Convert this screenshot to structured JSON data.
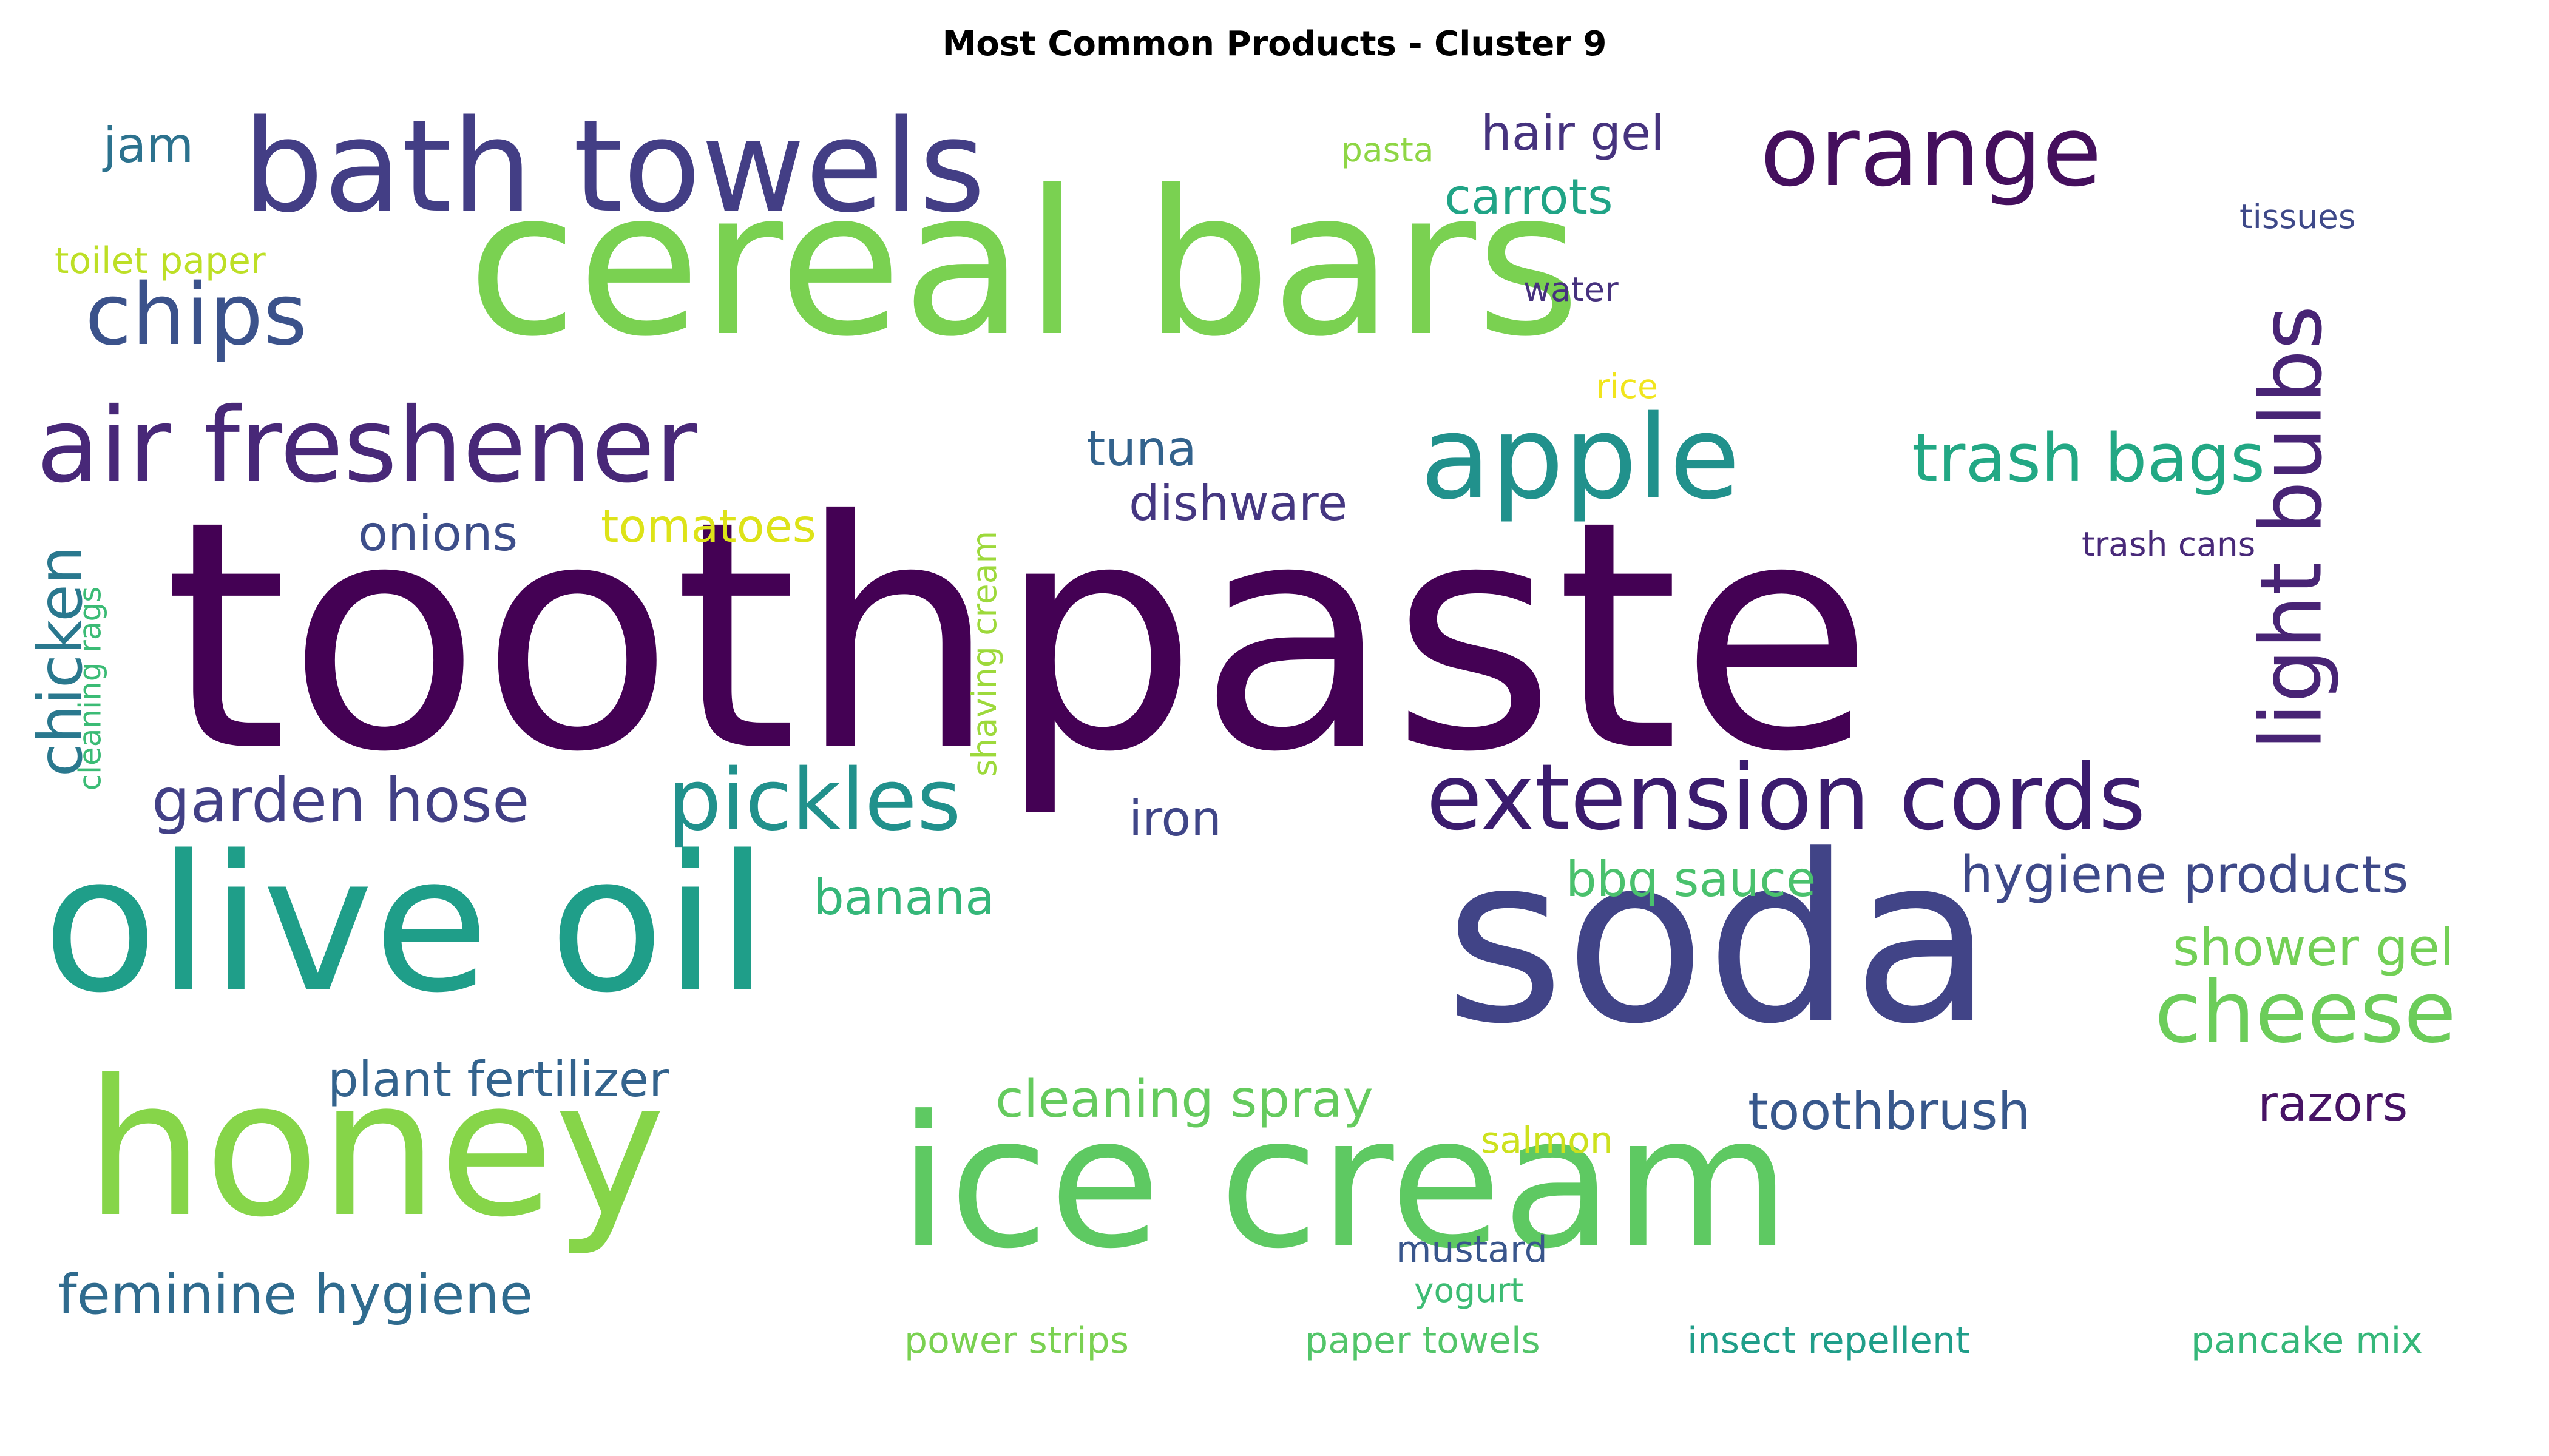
{
  "title": "Most Common Products - Cluster 9",
  "words": [
    {
      "text": "toothpaste",
      "color": "#440154",
      "vertical": false
    },
    {
      "text": "cereal bars",
      "color": "#7ad151",
      "vertical": false
    },
    {
      "text": "olive oil",
      "color": "#1f9e89",
      "vertical": false
    },
    {
      "text": "soda",
      "color": "#414487",
      "vertical": false
    },
    {
      "text": "honey",
      "color": "#86d549",
      "vertical": false
    },
    {
      "text": "ice cream",
      "color": "#5ec962",
      "vertical": false
    },
    {
      "text": "bath towels",
      "color": "#433e85",
      "vertical": false
    },
    {
      "text": "apple",
      "color": "#21918c",
      "vertical": false
    },
    {
      "text": "air freshener",
      "color": "#482878",
      "vertical": false
    },
    {
      "text": "orange",
      "color": "#440f5d",
      "vertical": false
    },
    {
      "text": "light bulbs",
      "color": "#482475",
      "vertical": true
    },
    {
      "text": "extension cords",
      "color": "#3b1c6e",
      "vertical": false
    },
    {
      "text": "pickles",
      "color": "#21918c",
      "vertical": false
    },
    {
      "text": "cheese",
      "color": "#6ccd5a",
      "vertical": false
    },
    {
      "text": "chips",
      "color": "#3b528b",
      "vertical": false
    },
    {
      "text": "trash bags",
      "color": "#22a884",
      "vertical": false
    },
    {
      "text": "garden hose",
      "color": "#424086",
      "vertical": false
    },
    {
      "text": "chicken",
      "color": "#2a788e",
      "vertical": true
    },
    {
      "text": "feminine hygiene",
      "color": "#2f6b8e",
      "vertical": false
    },
    {
      "text": "hygiene products",
      "color": "#3e4989",
      "vertical": false
    },
    {
      "text": "cleaning spray",
      "color": "#65cb5e",
      "vertical": false
    },
    {
      "text": "toothbrush",
      "color": "#38588c",
      "vertical": false
    },
    {
      "text": "shower gel",
      "color": "#73d056",
      "vertical": false
    },
    {
      "text": "plant fertilizer",
      "color": "#33638d",
      "vertical": false
    },
    {
      "text": "bbq sauce",
      "color": "#4ac16d",
      "vertical": false
    },
    {
      "text": "banana",
      "color": "#35b779",
      "vertical": false
    },
    {
      "text": "carrots",
      "color": "#20a486",
      "vertical": false
    },
    {
      "text": "hair gel",
      "color": "#46337e",
      "vertical": false
    },
    {
      "text": "tuna",
      "color": "#33638d",
      "vertical": false
    },
    {
      "text": "dishware",
      "color": "#453781",
      "vertical": false
    },
    {
      "text": "onions",
      "color": "#3d4e8a",
      "vertical": false
    },
    {
      "text": "tomatoes",
      "color": "#dde318",
      "vertical": false
    },
    {
      "text": "iron",
      "color": "#404688",
      "vertical": false
    },
    {
      "text": "razors",
      "color": "#471365",
      "vertical": false
    },
    {
      "text": "jam",
      "color": "#2c728e",
      "vertical": false
    },
    {
      "text": "shaving cream",
      "color": "#9dd93b",
      "vertical": true
    },
    {
      "text": "cleaning rags",
      "color": "#3bbb75",
      "vertical": true
    },
    {
      "text": "mustard",
      "color": "#39568c",
      "vertical": false
    },
    {
      "text": "yogurt",
      "color": "#3dbc74",
      "vertical": false
    },
    {
      "text": "power strips",
      "color": "#7ad151",
      "vertical": false
    },
    {
      "text": "paper towels",
      "color": "#52c569",
      "vertical": false
    },
    {
      "text": "insect repellent",
      "color": "#1f9e89",
      "vertical": false
    },
    {
      "text": "pancake mix",
      "color": "#35b779",
      "vertical": false
    },
    {
      "text": "salmon",
      "color": "#cde11d",
      "vertical": false
    },
    {
      "text": "pasta",
      "color": "#8ed645",
      "vertical": false
    },
    {
      "text": "toilet paper",
      "color": "#bddf26",
      "vertical": false
    },
    {
      "text": "water",
      "color": "#46317e",
      "vertical": false
    },
    {
      "text": "rice",
      "color": "#f1e51d",
      "vertical": false
    },
    {
      "text": "tissues",
      "color": "#3e4989",
      "vertical": false
    },
    {
      "text": "trash cans",
      "color": "#482979",
      "vertical": false
    }
  ]
}
